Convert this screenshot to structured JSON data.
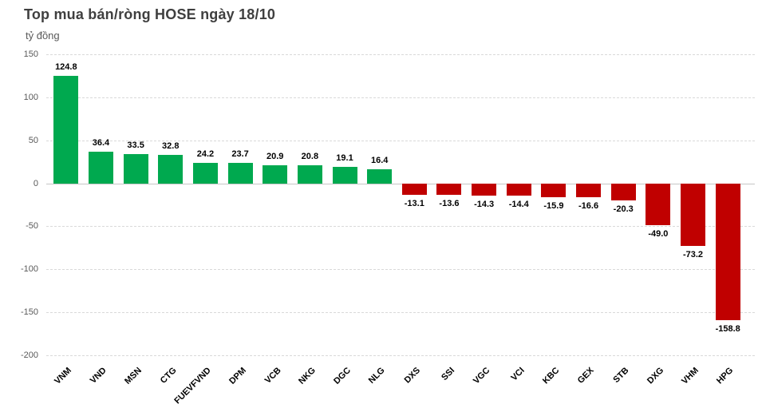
{
  "title": "Top mua bán/ròng HOSE ngày 18/10",
  "axis_unit_label": "tỷ đồng",
  "colors": {
    "positive_bar": "#00a94f",
    "negative_bar": "#c00000",
    "gridline": "#d9d9d9",
    "zero_line": "#c6c6c6",
    "title_text": "#3f3f3f",
    "axis_text": "#595959",
    "value_label_text": "#000000"
  },
  "chart_data": {
    "type": "bar",
    "title": "Top mua bán/ròng HOSE ngày 18/10",
    "ylabel": "tỷ đồng",
    "categories": [
      "VNM",
      "VND",
      "MSN",
      "CTG",
      "FUEVFVND",
      "DPM",
      "VCB",
      "NKG",
      "DGC",
      "NLG",
      "DXS",
      "SSI",
      "VGC",
      "VCI",
      "KBC",
      "GEX",
      "STB",
      "DXG",
      "VHM",
      "HPG"
    ],
    "values": [
      124.8,
      36.4,
      33.5,
      32.8,
      24.2,
      23.7,
      20.9,
      20.8,
      19.1,
      16.4,
      -13.1,
      -13.6,
      -14.3,
      -14.4,
      -15.9,
      -16.6,
      -20.3,
      -49.0,
      -73.2,
      -158.8
    ],
    "ylim": [
      -200,
      150
    ],
    "yticks": [
      150,
      100,
      50,
      0,
      -50,
      -100,
      -150,
      -200
    ],
    "grid": true,
    "gridline_style": "dashed",
    "legend": false,
    "value_labels": true,
    "value_label_decimals": 1,
    "xlabel_rotation_deg": -45
  }
}
